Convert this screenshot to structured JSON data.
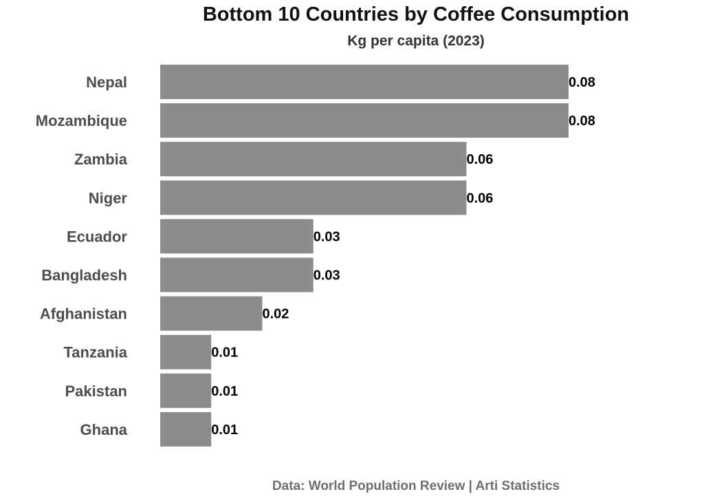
{
  "chart_data": {
    "type": "bar",
    "orientation": "horizontal",
    "title": "Bottom 10 Countries by Coffee Consumption",
    "subtitle": "Kg per capita (2023)",
    "caption": "Data: World Population Review | Arti Statistics",
    "xlabel": "",
    "ylabel": "",
    "categories": [
      "Nepal",
      "Mozambique",
      "Zambia",
      "Niger",
      "Ecuador",
      "Bangladesh",
      "Afghanistan",
      "Tanzania",
      "Pakistan",
      "Ghana"
    ],
    "values": [
      0.08,
      0.08,
      0.06,
      0.06,
      0.03,
      0.03,
      0.02,
      0.01,
      0.01,
      0.01
    ],
    "value_labels": [
      "0.08",
      "0.08",
      "0.06",
      "0.06",
      "0.03",
      "0.03",
      "0.02",
      "0.01",
      "0.01",
      "0.01"
    ],
    "xlim": [
      0,
      0.08
    ],
    "grid": false,
    "bar_color": "#8c8c8c"
  }
}
